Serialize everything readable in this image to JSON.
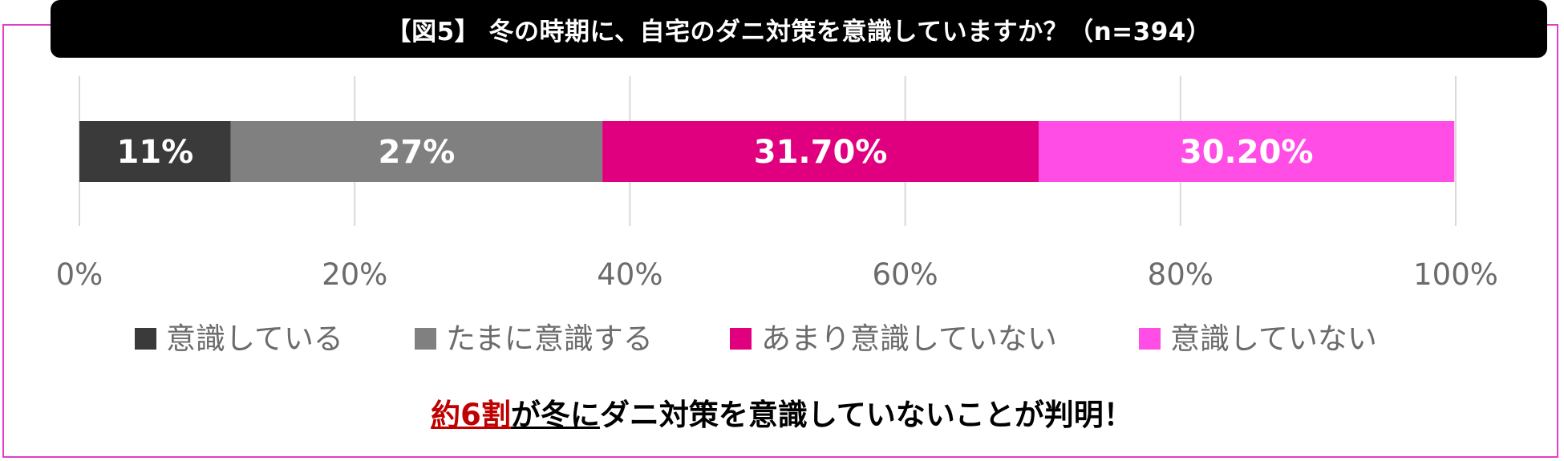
{
  "title": "【図5】 冬の時期に、自宅のダニ対策を意識していますか？（n=394）",
  "chart_data": {
    "type": "bar",
    "orientation": "horizontal-stacked-100",
    "series": [
      {
        "name": "意識している",
        "value": 11,
        "label": "11%",
        "color": "#3a3a3a"
      },
      {
        "name": "たまに意識する",
        "value": 27,
        "label": "27%",
        "color": "#808080"
      },
      {
        "name": "あまり意識していない",
        "value": 31.7,
        "label": "31.70%",
        "color": "#e0007f"
      },
      {
        "name": "意識していない",
        "value": 30.2,
        "label": "30.20%",
        "color": "#ff4de6"
      }
    ],
    "xlim": [
      0,
      100
    ],
    "xticks": [
      0,
      20,
      40,
      60,
      80,
      100
    ],
    "xtick_labels": [
      "0%",
      "20%",
      "40%",
      "60%",
      "80%",
      "100%"
    ],
    "grid": "vertical",
    "legend": "bottom"
  },
  "conclusion": {
    "highlight": "約6割",
    "underlined": "が冬に",
    "rest": "ダニ対策を意識していないことが判明！"
  }
}
